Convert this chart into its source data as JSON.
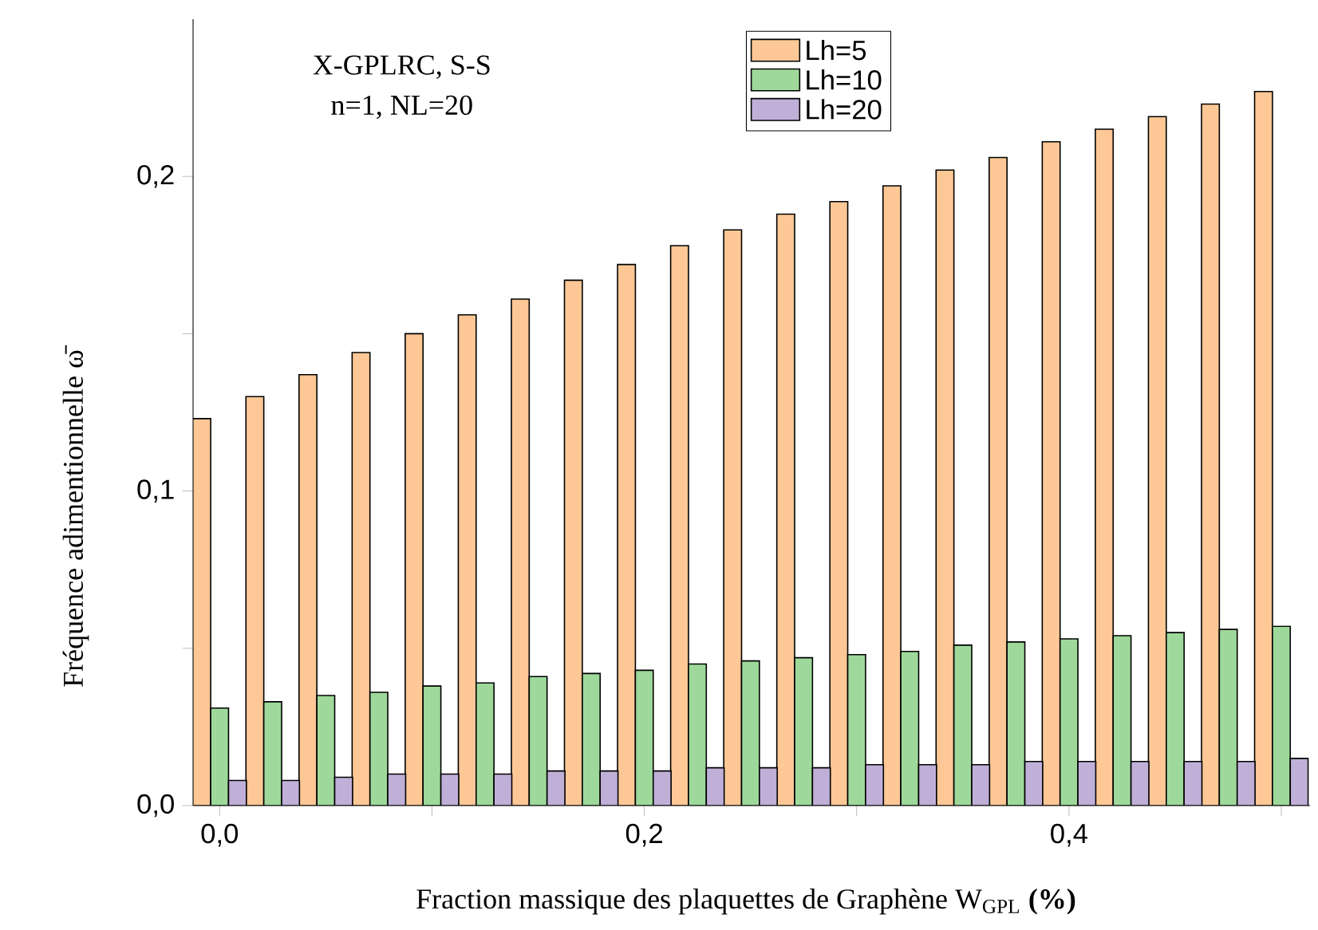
{
  "chart_data": {
    "type": "bar",
    "xlabel": "Fraction massique des plaquettes de Graphène W$_{GPL}$ **(%)**",
    "ylabel": "Fréquence adimentionnelle ω̄",
    "annotations": [
      "X-GPLRC, S-S",
      "n=1, NL=20"
    ],
    "x": [
      0,
      0.025,
      0.05,
      0.075,
      0.1,
      0.125,
      0.15,
      0.175,
      0.2,
      0.225,
      0.25,
      0.275,
      0.3,
      0.325,
      0.35,
      0.375,
      0.4,
      0.425,
      0.45,
      0.475,
      0.5
    ],
    "series": [
      {
        "name": "Lh=5",
        "color": "#fdc896",
        "values": [
          0.123,
          0.13,
          0.137,
          0.144,
          0.15,
          0.156,
          0.161,
          0.167,
          0.172,
          0.178,
          0.183,
          0.188,
          0.192,
          0.197,
          0.202,
          0.206,
          0.211,
          0.215,
          0.219,
          0.223,
          0.227
        ]
      },
      {
        "name": "Lh=10",
        "color": "#9ed99b",
        "values": [
          0.031,
          0.033,
          0.035,
          0.036,
          0.038,
          0.039,
          0.041,
          0.042,
          0.043,
          0.045,
          0.046,
          0.047,
          0.048,
          0.049,
          0.051,
          0.052,
          0.053,
          0.054,
          0.055,
          0.056,
          0.057
        ]
      },
      {
        "name": "Lh=20",
        "color": "#c0b0d8",
        "values": [
          0.008,
          0.008,
          0.009,
          0.01,
          0.01,
          0.01,
          0.011,
          0.011,
          0.011,
          0.012,
          0.012,
          0.012,
          0.013,
          0.013,
          0.013,
          0.014,
          0.014,
          0.014,
          0.014,
          0.014,
          0.015
        ]
      }
    ],
    "xlim": [
      -0.0125,
      0.5135
    ],
    "ylim": [
      0,
      0.25
    ],
    "xticks": [
      {
        "value": 0,
        "label": "0,0"
      },
      {
        "value": 0.1,
        "label": null
      },
      {
        "value": 0.2,
        "label": "0,2"
      },
      {
        "value": 0.3,
        "label": null
      },
      {
        "value": 0.4,
        "label": "0,4"
      },
      {
        "value": 0.5,
        "label": null
      }
    ],
    "yticks": [
      {
        "value": 0,
        "label": "0,0"
      },
      {
        "value": 0.05,
        "label": null
      },
      {
        "value": 0.1,
        "label": "0,1"
      },
      {
        "value": 0.15,
        "label": null
      },
      {
        "value": 0.2,
        "label": "0,2"
      }
    ],
    "legend": "top"
  }
}
